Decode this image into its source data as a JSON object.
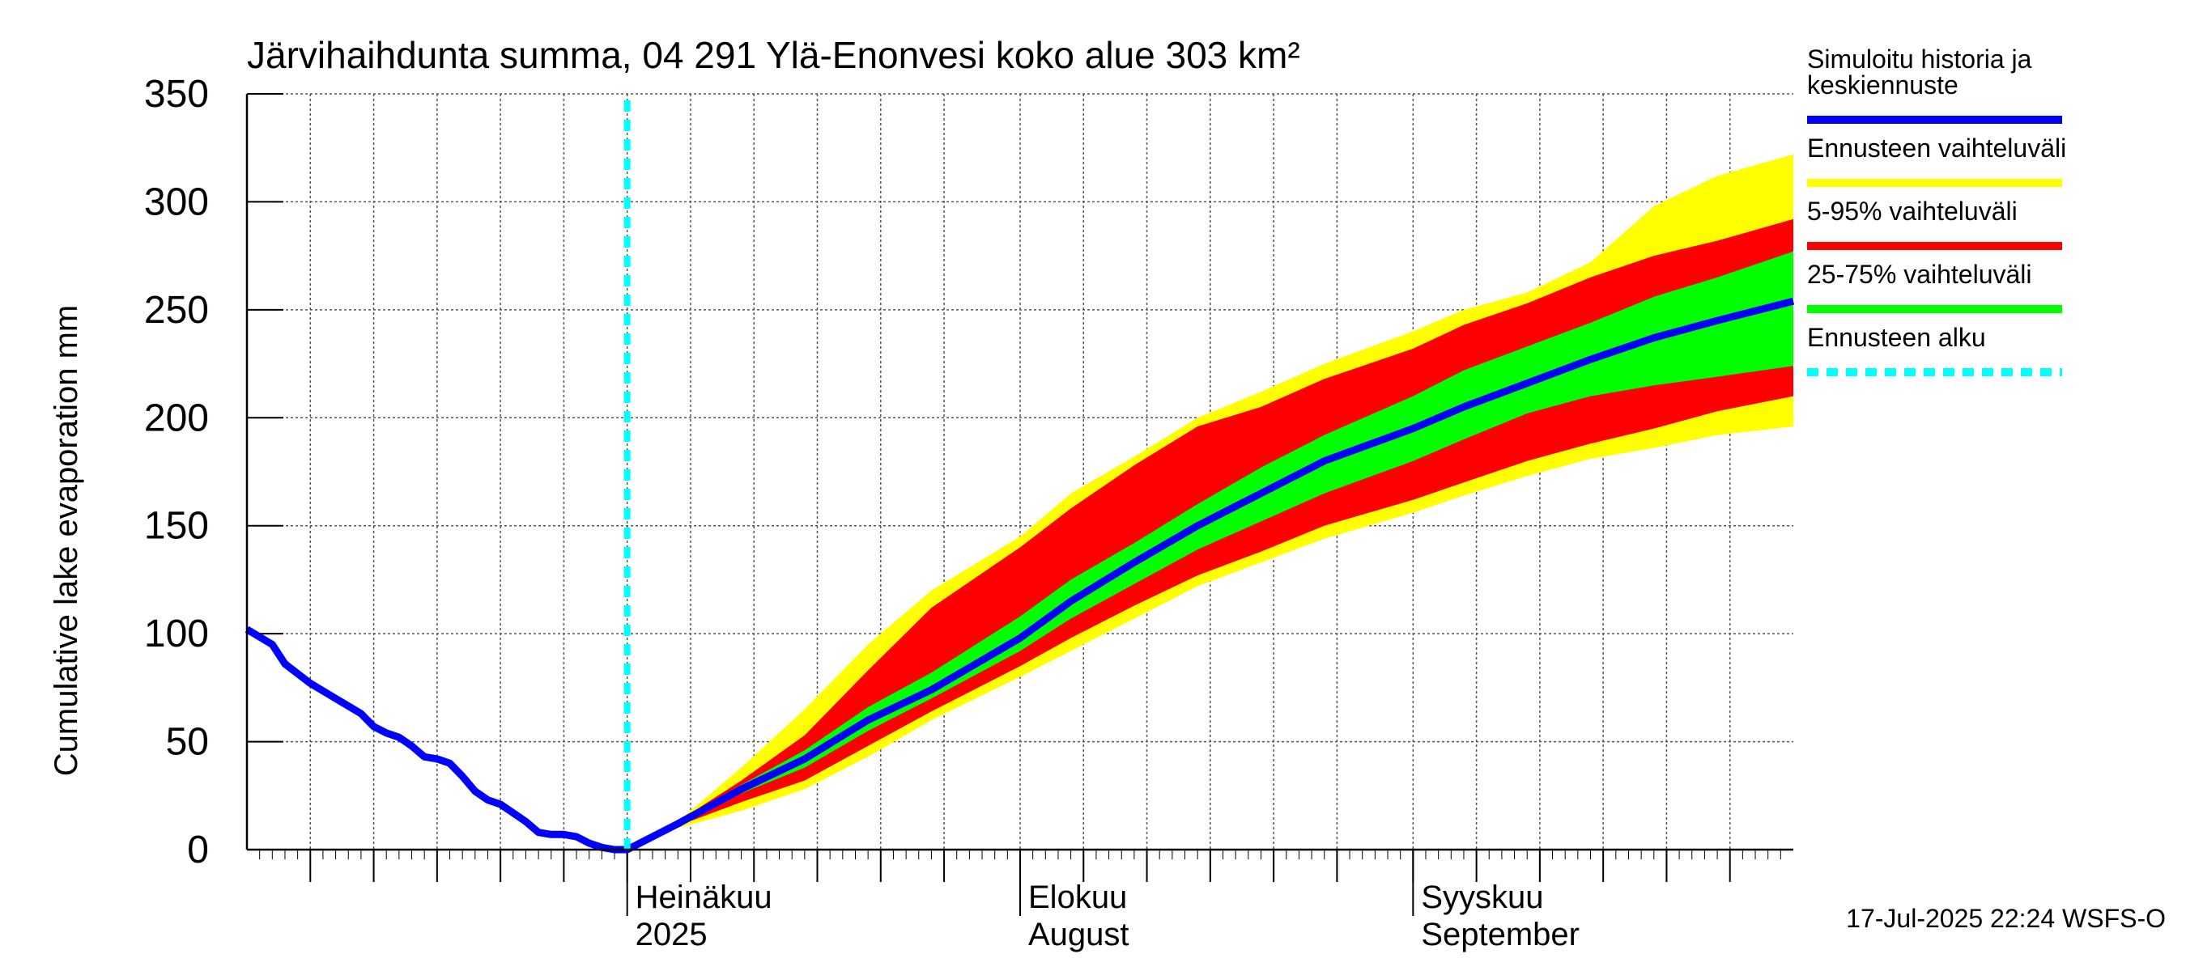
{
  "chart_data": {
    "type": "area",
    "title": "Järvihaihdunta summa, 04 291 Ylä-Enonvesi koko alue 303 km²",
    "ylabel": "Cumulative lake evaporation   mm",
    "ylim": [
      0,
      350
    ],
    "yticks": [
      0,
      50,
      100,
      150,
      200,
      250,
      300,
      350
    ],
    "xlim": [
      "2025-06-01",
      "2025-10-01"
    ],
    "forecast_start": "2025-07-01",
    "x_labels": [
      {
        "top": "Heinäkuu",
        "bottom": "2025",
        "date": "2025-07-01"
      },
      {
        "top": "Elokuu",
        "bottom": "August",
        "date": "2025-08-01"
      },
      {
        "top": "Syyskuu",
        "bottom": "September",
        "date": "2025-09-01"
      }
    ],
    "grid": true,
    "legend_position": "right",
    "legend": [
      {
        "label_lines": [
          "Simuloitu historia ja",
          "keskiennuste"
        ],
        "color": "#0000ff",
        "style": "line"
      },
      {
        "label_lines": [
          "Ennusteen vaihteluväli"
        ],
        "color": "#ffff00",
        "style": "line"
      },
      {
        "label_lines": [
          "5-95% vaihteluväli"
        ],
        "color": "#ff0000",
        "style": "line"
      },
      {
        "label_lines": [
          "25-75% vaihteluväli"
        ],
        "color": "#00ff00",
        "style": "line"
      },
      {
        "label_lines": [
          "Ennusteen alku"
        ],
        "color": "#00ffff",
        "style": "dashed"
      }
    ],
    "footer": "17-Jul-2025 22:24 WSFS-O",
    "history": {
      "dates": [
        "2025-06-01",
        "2025-06-03",
        "2025-06-04",
        "2025-06-06",
        "2025-06-08",
        "2025-06-10",
        "2025-06-11",
        "2025-06-12",
        "2025-06-13",
        "2025-06-14",
        "2025-06-15",
        "2025-06-16",
        "2025-06-17",
        "2025-06-18",
        "2025-06-19",
        "2025-06-20",
        "2025-06-21",
        "2025-06-22",
        "2025-06-23",
        "2025-06-24",
        "2025-06-25",
        "2025-06-26",
        "2025-06-27",
        "2025-06-28",
        "2025-06-29",
        "2025-06-30",
        "2025-07-01"
      ],
      "values": [
        102,
        95,
        86,
        77,
        70,
        63,
        57,
        54,
        52,
        48,
        43,
        42,
        40,
        34,
        27,
        23,
        21,
        17,
        13,
        8,
        7,
        7,
        6,
        3,
        1,
        0,
        0
      ]
    },
    "forecast": {
      "dates": [
        "2025-07-01",
        "2025-07-05",
        "2025-07-10",
        "2025-07-15",
        "2025-07-20",
        "2025-07-25",
        "2025-08-01",
        "2025-08-05",
        "2025-08-10",
        "2025-08-15",
        "2025-08-20",
        "2025-08-25",
        "2025-09-01",
        "2025-09-05",
        "2025-09-10",
        "2025-09-15",
        "2025-09-20",
        "2025-09-25",
        "2025-10-01"
      ],
      "median": [
        0,
        12,
        28,
        42,
        60,
        74,
        98,
        115,
        133,
        150,
        165,
        180,
        195,
        205,
        216,
        227,
        237,
        245,
        254
      ],
      "min": [
        0,
        10,
        18,
        28,
        43,
        60,
        80,
        92,
        107,
        122,
        133,
        144,
        156,
        164,
        173,
        181,
        186,
        192,
        196
      ],
      "max": [
        0,
        13,
        38,
        65,
        95,
        120,
        145,
        165,
        182,
        200,
        212,
        225,
        240,
        250,
        258,
        272,
        298,
        312,
        322
      ],
      "p5": [
        0,
        11,
        22,
        32,
        48,
        64,
        85,
        98,
        113,
        127,
        138,
        150,
        162,
        170,
        180,
        188,
        195,
        203,
        210
      ],
      "p95": [
        0,
        13,
        32,
        53,
        83,
        112,
        140,
        158,
        178,
        196,
        205,
        218,
        232,
        243,
        253,
        265,
        275,
        282,
        292
      ],
      "p25": [
        0,
        12,
        26,
        38,
        55,
        70,
        92,
        107,
        123,
        139,
        152,
        165,
        180,
        190,
        202,
        210,
        215,
        219,
        224
      ],
      "p75": [
        0,
        13,
        30,
        46,
        66,
        82,
        108,
        125,
        142,
        160,
        177,
        192,
        210,
        222,
        233,
        244,
        256,
        265,
        277
      ]
    }
  }
}
